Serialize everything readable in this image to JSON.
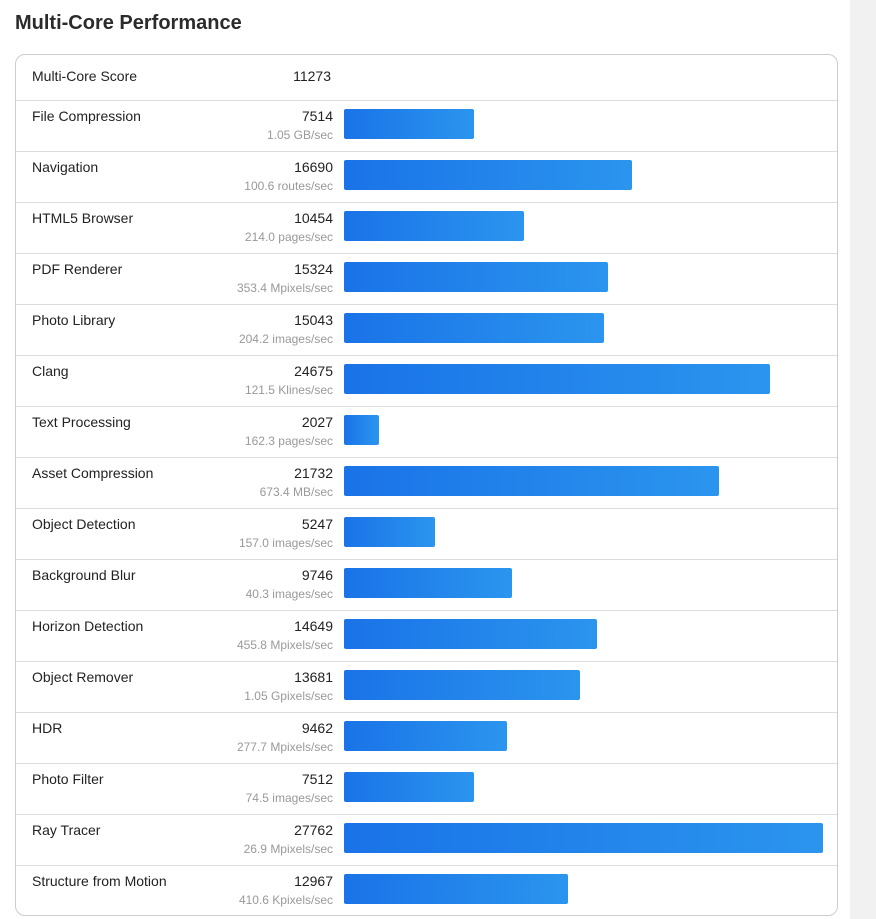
{
  "title": "Multi-Core Performance",
  "summary": {
    "label": "Multi-Core Score",
    "score": 11273
  },
  "rows": [
    {
      "name": "File Compression",
      "score": 7514,
      "throughput": "1.05 GB/sec"
    },
    {
      "name": "Navigation",
      "score": 16690,
      "throughput": "100.6 routes/sec"
    },
    {
      "name": "HTML5 Browser",
      "score": 10454,
      "throughput": "214.0 pages/sec"
    },
    {
      "name": "PDF Renderer",
      "score": 15324,
      "throughput": "353.4 Mpixels/sec"
    },
    {
      "name": "Photo Library",
      "score": 15043,
      "throughput": "204.2 images/sec"
    },
    {
      "name": "Clang",
      "score": 24675,
      "throughput": "121.5 Klines/sec"
    },
    {
      "name": "Text Processing",
      "score": 2027,
      "throughput": "162.3 pages/sec"
    },
    {
      "name": "Asset Compression",
      "score": 21732,
      "throughput": "673.4 MB/sec"
    },
    {
      "name": "Object Detection",
      "score": 5247,
      "throughput": "157.0 images/sec"
    },
    {
      "name": "Background Blur",
      "score": 9746,
      "throughput": "40.3 images/sec"
    },
    {
      "name": "Horizon Detection",
      "score": 14649,
      "throughput": "455.8 Mpixels/sec"
    },
    {
      "name": "Object Remover",
      "score": 13681,
      "throughput": "1.05 Gpixels/sec"
    },
    {
      "name": "HDR",
      "score": 9462,
      "throughput": "277.7 Mpixels/sec"
    },
    {
      "name": "Photo Filter",
      "score": 7512,
      "throughput": "74.5 images/sec"
    },
    {
      "name": "Ray Tracer",
      "score": 27762,
      "throughput": "26.9 Mpixels/sec"
    },
    {
      "name": "Structure from Motion",
      "score": 12967,
      "throughput": "410.6 Kpixels/sec"
    }
  ]
}
